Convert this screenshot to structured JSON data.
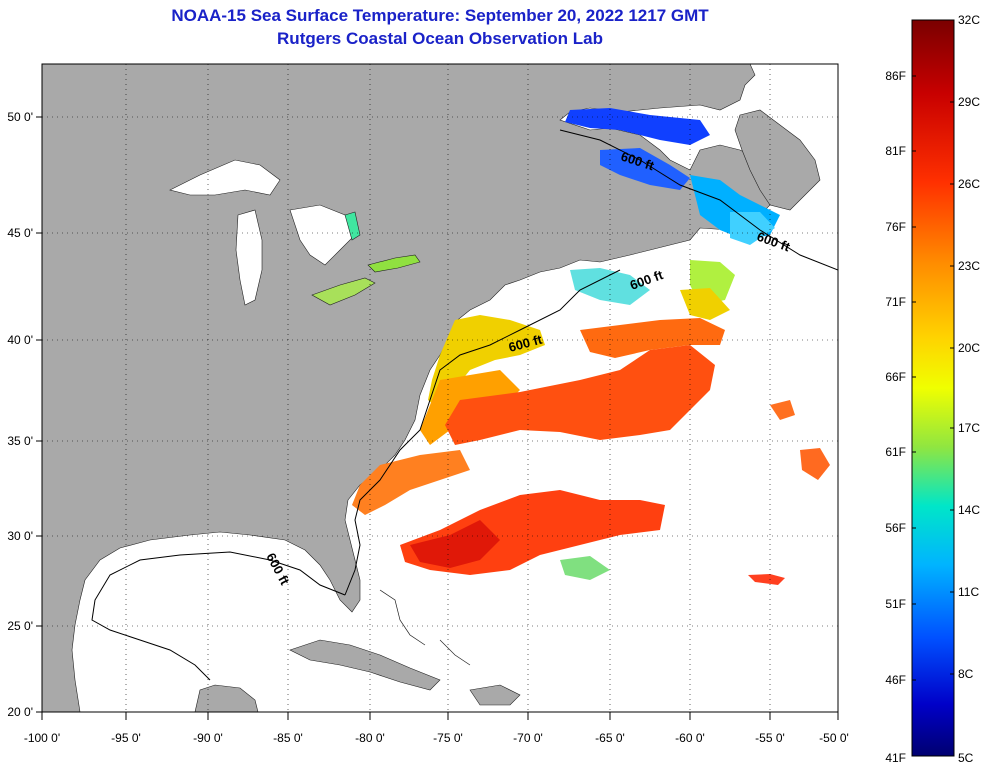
{
  "title": "NOAA-15 Sea Surface Temperature:  September 20, 2022 1217 GMT",
  "subtitle": "Rutgers Coastal Ocean Observation Lab",
  "axes": {
    "x_ticks": [
      "-100 0'",
      "-95 0'",
      "-90 0'",
      "-85 0'",
      "-80 0'",
      "-75 0'",
      "-70 0'",
      "-65 0'",
      "-60 0'",
      "-55 0'",
      "-50 0'"
    ],
    "y_ticks": [
      "50 0'",
      "45 0'",
      "40 0'",
      "35 0'",
      "30 0'",
      "25 0'",
      "20 0'"
    ],
    "lon_range": [
      -100,
      -50
    ],
    "lat_range": [
      20,
      52
    ],
    "grid": true
  },
  "contour_label": "600 ft",
  "colorbar": {
    "celsius": [
      "32C",
      "29C",
      "26C",
      "23C",
      "20C",
      "17C",
      "14C",
      "11C",
      "8C",
      "5C"
    ],
    "fahrenheit": [
      "86F",
      "81F",
      "76F",
      "71F",
      "66F",
      "61F",
      "56F",
      "51F",
      "46F",
      "41F"
    ],
    "colors": [
      "#6b0000",
      "#c80000",
      "#ff2a00",
      "#ff7a00",
      "#ffc800",
      "#ffff00",
      "#b4f000",
      "#50e650",
      "#00e6b4",
      "#00e6ff",
      "#00a0ff",
      "#0050ff",
      "#0000d2",
      "#000080"
    ]
  },
  "colors": {
    "land": "#a9a9a9",
    "ocean": "#ffffff",
    "title": "#1a22c8"
  }
}
